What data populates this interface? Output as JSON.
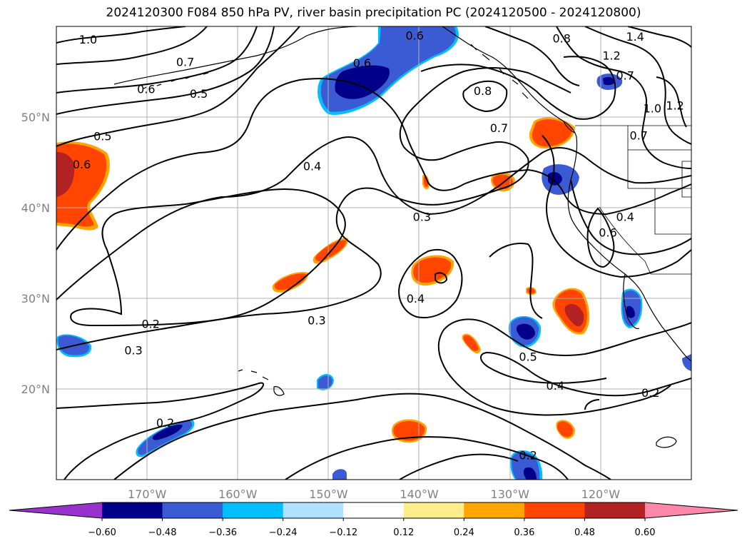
{
  "title": "2024120300 F084 850 hPa PV, river basin precipitation PC (2024120500 - 2024120800)",
  "colors": {
    "contour": "#000000",
    "grid": "#b0b0b0",
    "coast": "#000000",
    "axis_label": "#808080"
  },
  "map": {
    "lon_range": [
      -180,
      -110
    ],
    "lat_range": [
      10,
      60
    ],
    "lon_ticks": [
      {
        "value": -170,
        "label": "170°W"
      },
      {
        "value": -160,
        "label": "160°W"
      },
      {
        "value": -150,
        "label": "150°W"
      },
      {
        "value": -140,
        "label": "140°W"
      },
      {
        "value": -130,
        "label": "130°W"
      },
      {
        "value": -120,
        "label": "120°W"
      }
    ],
    "lat_ticks": [
      {
        "value": 20,
        "label": "20°N"
      },
      {
        "value": 30,
        "label": "30°N"
      },
      {
        "value": 40,
        "label": "40°N"
      },
      {
        "value": 50,
        "label": "50°N"
      }
    ]
  },
  "contour_labels": [
    {
      "text": "1.0",
      "lon": -176.5,
      "lat": 58.6
    },
    {
      "text": "0.7",
      "lon": -165.8,
      "lat": 56.1
    },
    {
      "text": "0.6",
      "lon": -170.1,
      "lat": 53.1
    },
    {
      "text": "0.5",
      "lon": -164.3,
      "lat": 52.6
    },
    {
      "text": "0.5",
      "lon": -174.9,
      "lat": 47.9
    },
    {
      "text": "0.6",
      "lon": -177.2,
      "lat": 44.8
    },
    {
      "text": "0.4",
      "lon": -151.8,
      "lat": 44.6
    },
    {
      "text": "0.6",
      "lon": -146.3,
      "lat": 56.0
    },
    {
      "text": "0.6",
      "lon": -140.5,
      "lat": 59.0
    },
    {
      "text": "0.8",
      "lon": -133.0,
      "lat": 52.9
    },
    {
      "text": "0.7",
      "lon": -131.2,
      "lat": 48.8
    },
    {
      "text": "0.8",
      "lon": -124.3,
      "lat": 58.7
    },
    {
      "text": "1.2",
      "lon": -118.8,
      "lat": 56.8
    },
    {
      "text": "1.4",
      "lon": -116.2,
      "lat": 58.9
    },
    {
      "text": "0.7",
      "lon": -117.3,
      "lat": 54.6
    },
    {
      "text": "1.0",
      "lon": -114.3,
      "lat": 51.0
    },
    {
      "text": "1.2",
      "lon": -111.8,
      "lat": 51.3
    },
    {
      "text": "0.7",
      "lon": -115.8,
      "lat": 48.0
    },
    {
      "text": "0.3",
      "lon": -139.7,
      "lat": 39.0
    },
    {
      "text": "0.4",
      "lon": -117.3,
      "lat": 39.0
    },
    {
      "text": "0.6",
      "lon": -119.2,
      "lat": 37.3
    },
    {
      "text": "0.4",
      "lon": -140.4,
      "lat": 30.0
    },
    {
      "text": "0.3",
      "lon": -151.3,
      "lat": 27.6
    },
    {
      "text": "0.2",
      "lon": -169.6,
      "lat": 27.2
    },
    {
      "text": "0.3",
      "lon": -171.5,
      "lat": 24.3
    },
    {
      "text": "0.5",
      "lon": -128.0,
      "lat": 23.6
    },
    {
      "text": "0.4",
      "lon": -125.0,
      "lat": 20.4
    },
    {
      "text": "0.2",
      "lon": -114.5,
      "lat": 19.6
    },
    {
      "text": "0.2",
      "lon": -168.0,
      "lat": 16.3
    },
    {
      "text": "0.2",
      "lon": -128.0,
      "lat": 12.7
    }
  ],
  "colorbar": {
    "levels": [
      "−0.60",
      "−0.48",
      "−0.36",
      "−0.24",
      "−0.12",
      "0.12",
      "0.24",
      "0.36",
      "0.48",
      "0.60"
    ],
    "colors": [
      "#9932cc",
      "#00008b",
      "#3a5bd3",
      "#00bfff",
      "#b0e2ff",
      "#ffffff",
      "#ffec8b",
      "#ffa500",
      "#ff4500",
      "#b22222",
      "#ff88aa"
    ]
  }
}
